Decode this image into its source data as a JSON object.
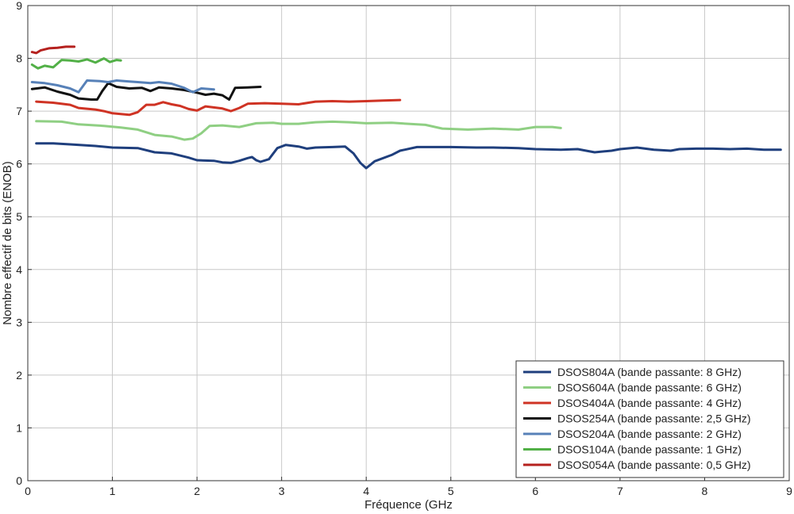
{
  "chart_data": {
    "type": "line",
    "title": "",
    "xlabel": "Fréquence (GHz",
    "ylabel": "Nombre effectif de bits (ENOB)",
    "xlim": [
      0,
      9
    ],
    "ylim": [
      0,
      9
    ],
    "xticks": [
      "0",
      "1",
      "2",
      "3",
      "4",
      "5",
      "6",
      "7",
      "8",
      "9"
    ],
    "yticks": [
      "0",
      "1",
      "2",
      "3",
      "4",
      "5",
      "6",
      "7",
      "8",
      "9"
    ],
    "grid": true,
    "legend_position": "bottom-right",
    "series": [
      {
        "name": "DSOS804A (bande passante: 8 GHz)",
        "color": "#1f3f7d",
        "points": [
          [
            0.1,
            6.39
          ],
          [
            0.3,
            6.39
          ],
          [
            0.5,
            6.37
          ],
          [
            0.8,
            6.34
          ],
          [
            1.0,
            6.31
          ],
          [
            1.3,
            6.3
          ],
          [
            1.5,
            6.22
          ],
          [
            1.7,
            6.2
          ],
          [
            1.9,
            6.12
          ],
          [
            2.0,
            6.07
          ],
          [
            2.2,
            6.06
          ],
          [
            2.3,
            6.03
          ],
          [
            2.4,
            6.02
          ],
          [
            2.5,
            6.06
          ],
          [
            2.6,
            6.11
          ],
          [
            2.65,
            6.13
          ],
          [
            2.7,
            6.07
          ],
          [
            2.75,
            6.04
          ],
          [
            2.85,
            6.09
          ],
          [
            2.95,
            6.3
          ],
          [
            3.05,
            6.36
          ],
          [
            3.2,
            6.33
          ],
          [
            3.3,
            6.29
          ],
          [
            3.4,
            6.31
          ],
          [
            3.6,
            6.32
          ],
          [
            3.75,
            6.33
          ],
          [
            3.85,
            6.2
          ],
          [
            3.93,
            6.02
          ],
          [
            4.0,
            5.92
          ],
          [
            4.1,
            6.05
          ],
          [
            4.3,
            6.17
          ],
          [
            4.4,
            6.25
          ],
          [
            4.6,
            6.32
          ],
          [
            4.8,
            6.32
          ],
          [
            5.0,
            6.32
          ],
          [
            5.3,
            6.31
          ],
          [
            5.5,
            6.31
          ],
          [
            5.8,
            6.3
          ],
          [
            6.0,
            6.28
          ],
          [
            6.3,
            6.27
          ],
          [
            6.5,
            6.28
          ],
          [
            6.7,
            6.22
          ],
          [
            6.9,
            6.25
          ],
          [
            7.0,
            6.28
          ],
          [
            7.2,
            6.31
          ],
          [
            7.4,
            6.27
          ],
          [
            7.6,
            6.25
          ],
          [
            7.7,
            6.28
          ],
          [
            7.9,
            6.29
          ],
          [
            8.1,
            6.29
          ],
          [
            8.3,
            6.28
          ],
          [
            8.5,
            6.29
          ],
          [
            8.7,
            6.27
          ],
          [
            8.9,
            6.27
          ]
        ]
      },
      {
        "name": "DSOS604A (bande passante: 6 GHz)",
        "color": "#8fcf83",
        "points": [
          [
            0.1,
            6.81
          ],
          [
            0.4,
            6.8
          ],
          [
            0.6,
            6.75
          ],
          [
            0.9,
            6.72
          ],
          [
            1.1,
            6.69
          ],
          [
            1.3,
            6.65
          ],
          [
            1.5,
            6.55
          ],
          [
            1.7,
            6.52
          ],
          [
            1.85,
            6.46
          ],
          [
            1.95,
            6.48
          ],
          [
            2.05,
            6.58
          ],
          [
            2.15,
            6.72
          ],
          [
            2.3,
            6.73
          ],
          [
            2.5,
            6.7
          ],
          [
            2.7,
            6.77
          ],
          [
            2.9,
            6.78
          ],
          [
            3.0,
            6.76
          ],
          [
            3.2,
            6.76
          ],
          [
            3.4,
            6.79
          ],
          [
            3.6,
            6.8
          ],
          [
            3.8,
            6.79
          ],
          [
            4.0,
            6.77
          ],
          [
            4.3,
            6.78
          ],
          [
            4.5,
            6.76
          ],
          [
            4.7,
            6.74
          ],
          [
            4.9,
            6.67
          ],
          [
            5.2,
            6.65
          ],
          [
            5.5,
            6.67
          ],
          [
            5.8,
            6.65
          ],
          [
            6.0,
            6.7
          ],
          [
            6.2,
            6.7
          ],
          [
            6.3,
            6.68
          ]
        ]
      },
      {
        "name": "DSOS404A (bande passante: 4 GHz)",
        "color": "#cf3324",
        "points": [
          [
            0.1,
            7.18
          ],
          [
            0.3,
            7.16
          ],
          [
            0.5,
            7.12
          ],
          [
            0.6,
            7.06
          ],
          [
            0.8,
            7.03
          ],
          [
            0.9,
            7.0
          ],
          [
            1.0,
            6.96
          ],
          [
            1.2,
            6.93
          ],
          [
            1.3,
            6.98
          ],
          [
            1.4,
            7.12
          ],
          [
            1.5,
            7.12
          ],
          [
            1.6,
            7.17
          ],
          [
            1.7,
            7.13
          ],
          [
            1.8,
            7.1
          ],
          [
            1.9,
            7.04
          ],
          [
            2.0,
            7.01
          ],
          [
            2.1,
            7.09
          ],
          [
            2.3,
            7.05
          ],
          [
            2.4,
            7.0
          ],
          [
            2.5,
            7.06
          ],
          [
            2.6,
            7.14
          ],
          [
            2.8,
            7.15
          ],
          [
            3.0,
            7.14
          ],
          [
            3.2,
            7.13
          ],
          [
            3.4,
            7.18
          ],
          [
            3.6,
            7.19
          ],
          [
            3.8,
            7.18
          ],
          [
            4.0,
            7.19
          ],
          [
            4.2,
            7.2
          ],
          [
            4.4,
            7.21
          ]
        ]
      },
      {
        "name": "DSOS254A (bande passante: 2,5 GHz)",
        "color": "#111111",
        "points": [
          [
            0.05,
            7.42
          ],
          [
            0.2,
            7.45
          ],
          [
            0.35,
            7.37
          ],
          [
            0.5,
            7.31
          ],
          [
            0.6,
            7.24
          ],
          [
            0.75,
            7.22
          ],
          [
            0.82,
            7.22
          ],
          [
            0.88,
            7.38
          ],
          [
            0.95,
            7.53
          ],
          [
            1.05,
            7.46
          ],
          [
            1.2,
            7.43
          ],
          [
            1.35,
            7.44
          ],
          [
            1.45,
            7.38
          ],
          [
            1.55,
            7.45
          ],
          [
            1.7,
            7.43
          ],
          [
            1.85,
            7.4
          ],
          [
            2.0,
            7.35
          ],
          [
            2.1,
            7.31
          ],
          [
            2.2,
            7.33
          ],
          [
            2.3,
            7.3
          ],
          [
            2.38,
            7.22
          ],
          [
            2.45,
            7.44
          ],
          [
            2.6,
            7.45
          ],
          [
            2.75,
            7.46
          ]
        ]
      },
      {
        "name": "DSOS204A (bande passante: 2 GHz)",
        "color": "#5781b8",
        "points": [
          [
            0.05,
            7.55
          ],
          [
            0.2,
            7.53
          ],
          [
            0.35,
            7.49
          ],
          [
            0.5,
            7.43
          ],
          [
            0.6,
            7.36
          ],
          [
            0.7,
            7.58
          ],
          [
            0.85,
            7.57
          ],
          [
            0.95,
            7.55
          ],
          [
            1.05,
            7.58
          ],
          [
            1.2,
            7.56
          ],
          [
            1.3,
            7.55
          ],
          [
            1.45,
            7.53
          ],
          [
            1.55,
            7.55
          ],
          [
            1.7,
            7.52
          ],
          [
            1.85,
            7.44
          ],
          [
            1.95,
            7.36
          ],
          [
            2.05,
            7.43
          ],
          [
            2.2,
            7.41
          ]
        ]
      },
      {
        "name": "DSOS104A (bande passante: 1 GHz)",
        "color": "#52b047",
        "points": [
          [
            0.05,
            7.88
          ],
          [
            0.12,
            7.81
          ],
          [
            0.2,
            7.86
          ],
          [
            0.3,
            7.83
          ],
          [
            0.4,
            7.97
          ],
          [
            0.5,
            7.96
          ],
          [
            0.6,
            7.94
          ],
          [
            0.7,
            7.98
          ],
          [
            0.8,
            7.92
          ],
          [
            0.9,
            8.0
          ],
          [
            0.97,
            7.93
          ],
          [
            1.05,
            7.97
          ],
          [
            1.1,
            7.96
          ]
        ]
      },
      {
        "name": "DSOS054A (bande passante: 0,5 GHz)",
        "color": "#b5211e",
        "points": [
          [
            0.05,
            8.12
          ],
          [
            0.1,
            8.1
          ],
          [
            0.15,
            8.15
          ],
          [
            0.25,
            8.19
          ],
          [
            0.35,
            8.2
          ],
          [
            0.45,
            8.22
          ],
          [
            0.55,
            8.22
          ]
        ]
      }
    ]
  }
}
